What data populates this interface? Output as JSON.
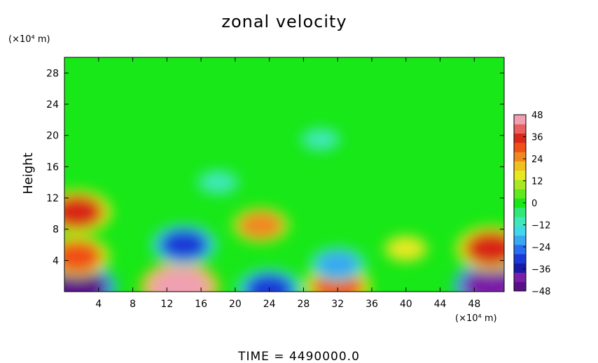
{
  "chart_data": {
    "type": "heatmap",
    "title": "zonal velocity",
    "xlabel": "",
    "ylabel": "Height",
    "x_unit": "(×10⁴ m)",
    "y_unit": "(×10⁴ m)",
    "xlim": [
      0,
      51.5
    ],
    "ylim": [
      0,
      30
    ],
    "x_ticks": [
      4,
      8,
      12,
      16,
      20,
      24,
      28,
      32,
      36,
      40,
      44,
      48
    ],
    "y_ticks": [
      4,
      8,
      12,
      16,
      20,
      24,
      28
    ],
    "colorbar": {
      "range": [
        -48,
        48
      ],
      "ticks": [
        48,
        36,
        24,
        12,
        0,
        -12,
        -24,
        -36,
        -48
      ],
      "colors": [
        "#5a0f8a",
        "#7a1fa8",
        "#1a1aa8",
        "#1a3ad8",
        "#2a6ef0",
        "#3aa8f0",
        "#40d8e8",
        "#40e8b8",
        "#30e878",
        "#18e818",
        "#60e820",
        "#a8e820",
        "#e8e820",
        "#f0c020",
        "#f08820",
        "#f05018",
        "#d82818",
        "#e86060",
        "#f0a0b0"
      ]
    },
    "field_features": [
      {
        "x": 1.5,
        "y": 0.5,
        "value": -44
      },
      {
        "x": 13.5,
        "y": 0.6,
        "value": 44
      },
      {
        "x": 24,
        "y": 0.3,
        "value": -30
      },
      {
        "x": 32,
        "y": 0.7,
        "value": 32
      },
      {
        "x": 50,
        "y": 0.7,
        "value": -42
      },
      {
        "x": 1.5,
        "y": 10.2,
        "value": 34
      },
      {
        "x": 1.5,
        "y": 4.5,
        "value": 30
      },
      {
        "x": 14,
        "y": 6,
        "value": -30
      },
      {
        "x": 23,
        "y": 8.5,
        "value": 24
      },
      {
        "x": 32,
        "y": 3.5,
        "value": -22
      },
      {
        "x": 40,
        "y": 5.5,
        "value": 14
      },
      {
        "x": 50,
        "y": 5.5,
        "value": 36
      },
      {
        "x": 18,
        "y": 14,
        "value": -10
      },
      {
        "x": 30,
        "y": 19.5,
        "value": -8
      }
    ],
    "annotation": "TIME  =  4490000.0"
  }
}
